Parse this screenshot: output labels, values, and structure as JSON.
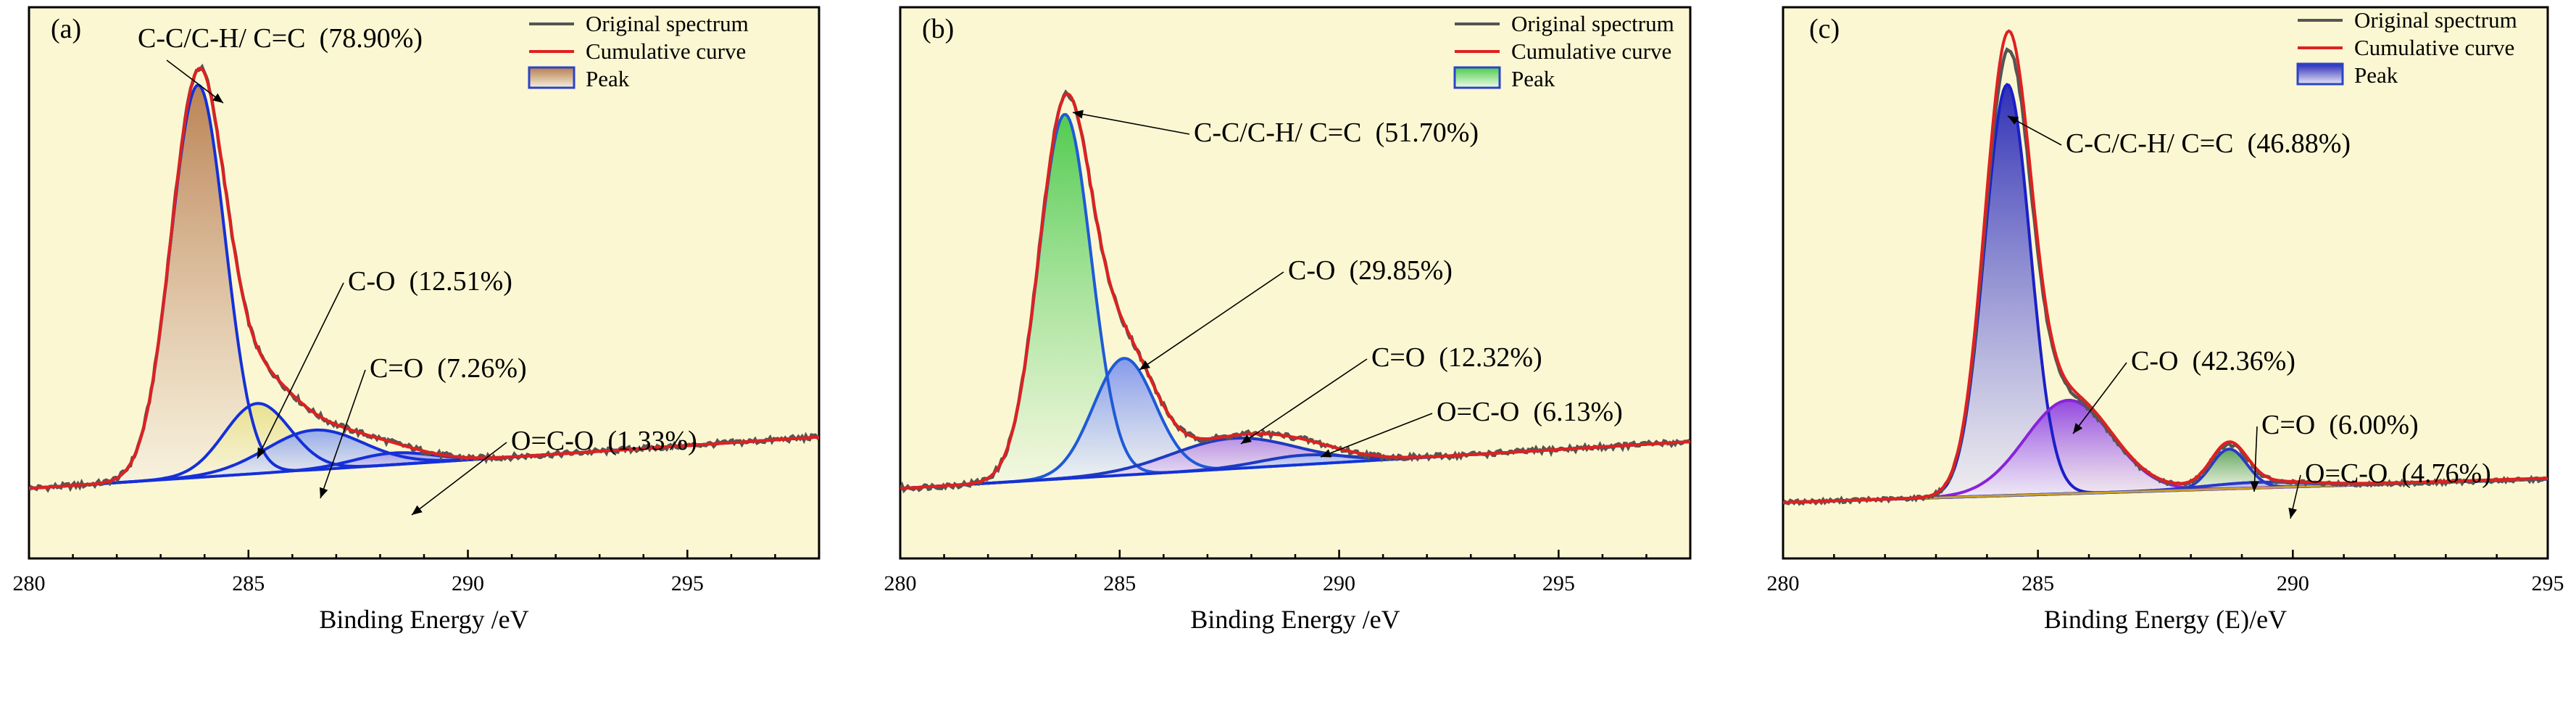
{
  "figure": {
    "legend": {
      "original": "Original spectrum",
      "cumulative": "Cumulative curve",
      "peak": "Peak"
    }
  },
  "chart_data": [
    {
      "id": "a",
      "type": "line",
      "panel_label": "(a)",
      "xlabel": "Binding Energy /eV",
      "ylabel": "",
      "xlim": [
        280,
        298
      ],
      "ylim": [
        -0.12,
        1.06
      ],
      "xticks": [
        280,
        285,
        290,
        295
      ],
      "background": 0.03,
      "baseline_end": 0.14,
      "noise": 0.006,
      "cumulative_color": "#e02020",
      "original_color": "#555555",
      "legend_swatch": [
        "#b87d4e",
        "#f4f0dc"
      ],
      "peaks": [
        {
          "label": "C-C/C-H/ C=C",
          "percent": "78.90%",
          "center": 283.85,
          "sigma": 0.62,
          "height": 0.84,
          "color": "#1530d8",
          "fill_top": "#b87d4e",
          "fill_bottom": "#f7f1e2"
        },
        {
          "label": "C-O",
          "percent": "12.51%",
          "center": 285.2,
          "sigma": 0.75,
          "height": 0.15,
          "color": "#1530d8",
          "fill_top": "#e8e08a",
          "fill_bottom": "#faf6de"
        },
        {
          "label": "C=O",
          "percent": "7.26%",
          "center": 286.5,
          "sigma": 1.1,
          "height": 0.085,
          "color": "#1530d8",
          "fill_top": "#8fa6ea",
          "fill_bottom": "#eef0f6"
        },
        {
          "label": "O=C-O",
          "percent": "1.33%",
          "center": 288.3,
          "sigma": 0.9,
          "height": 0.025,
          "color": "#1530d8",
          "fill_top": "#a09ae8",
          "fill_bottom": "#f0eef6"
        }
      ]
    },
    {
      "id": "b",
      "type": "line",
      "panel_label": "(b)",
      "xlabel": "Binding Energy /eV",
      "ylabel": "",
      "xlim": [
        280,
        298
      ],
      "ylim": [
        -0.12,
        1.06
      ],
      "xticks": [
        280,
        285,
        290,
        295
      ],
      "background": 0.03,
      "baseline_end": 0.13,
      "noise": 0.006,
      "cumulative_color": "#e02020",
      "original_color": "#555555",
      "legend_swatch": [
        "#4ccc4c",
        "#f0fbe8"
      ],
      "peaks": [
        {
          "label": "C-C/C-H/ C=C",
          "percent": "51.70%",
          "center": 283.75,
          "sigma": 0.6,
          "height": 0.78,
          "color": "#1e5ad8",
          "fill_top": "#49c94a",
          "fill_bottom": "#f3f8e4"
        },
        {
          "label": "C-O",
          "percent": "29.85%",
          "center": 285.1,
          "sigma": 0.7,
          "height": 0.25,
          "color": "#1e5ad8",
          "fill_top": "#7f95ec",
          "fill_bottom": "#eef1f8"
        },
        {
          "label": "C=O",
          "percent": "12.32%",
          "center": 287.6,
          "sigma": 1.4,
          "height": 0.065,
          "color": "#1e3ac0",
          "fill_top": "#b58ae6",
          "fill_bottom": "#f0eaf6"
        },
        {
          "label": "O=C-O",
          "percent": "6.13%",
          "center": 289.2,
          "sigma": 1.0,
          "height": 0.02,
          "color": "#1e3ac0",
          "fill_top": "#a4b3ee",
          "fill_bottom": "#f0f2f8"
        }
      ]
    },
    {
      "id": "c",
      "type": "line",
      "panel_label": "(c)",
      "xlabel": "Binding Energy (E)/eV",
      "ylabel": "",
      "xlim": [
        280,
        295
      ],
      "ylim": [
        -0.12,
        1.06
      ],
      "xticks": [
        280,
        285,
        290,
        295
      ],
      "background": 0.0,
      "baseline_end": 0.05,
      "noise": 0.004,
      "cumulative_color": "#e02020",
      "original_color": "#555555",
      "legend_swatch": [
        "#2a2ab8",
        "#e6e6f6"
      ],
      "peaks": [
        {
          "label": "C-C/C-H/ C=C",
          "percent": "46.88%",
          "center": 284.4,
          "sigma": 0.45,
          "height": 0.88,
          "color": "#1a20c8",
          "fill_top": "#2626b4",
          "fill_bottom": "#ecebf8"
        },
        {
          "label": "C-O",
          "percent": "42.36%",
          "center": 285.6,
          "sigma": 0.85,
          "height": 0.2,
          "color": "#8a22d8",
          "fill_top": "#8e3ee0",
          "fill_bottom": "#f2ecf8"
        },
        {
          "label": "C=O",
          "percent": "6.00%",
          "center": 288.75,
          "sigma": 0.35,
          "height": 0.085,
          "color": "#2a38c8",
          "fill_top": "#58a058",
          "fill_bottom": "#e8f2e4"
        },
        {
          "label": "O=C-O",
          "percent": "4.76%",
          "center": 289.3,
          "sigma": 1.0,
          "height": 0.012,
          "color": "#2a38c8",
          "fill_top": "#a0a8e8",
          "fill_bottom": "#f0f2f8"
        }
      ]
    }
  ]
}
